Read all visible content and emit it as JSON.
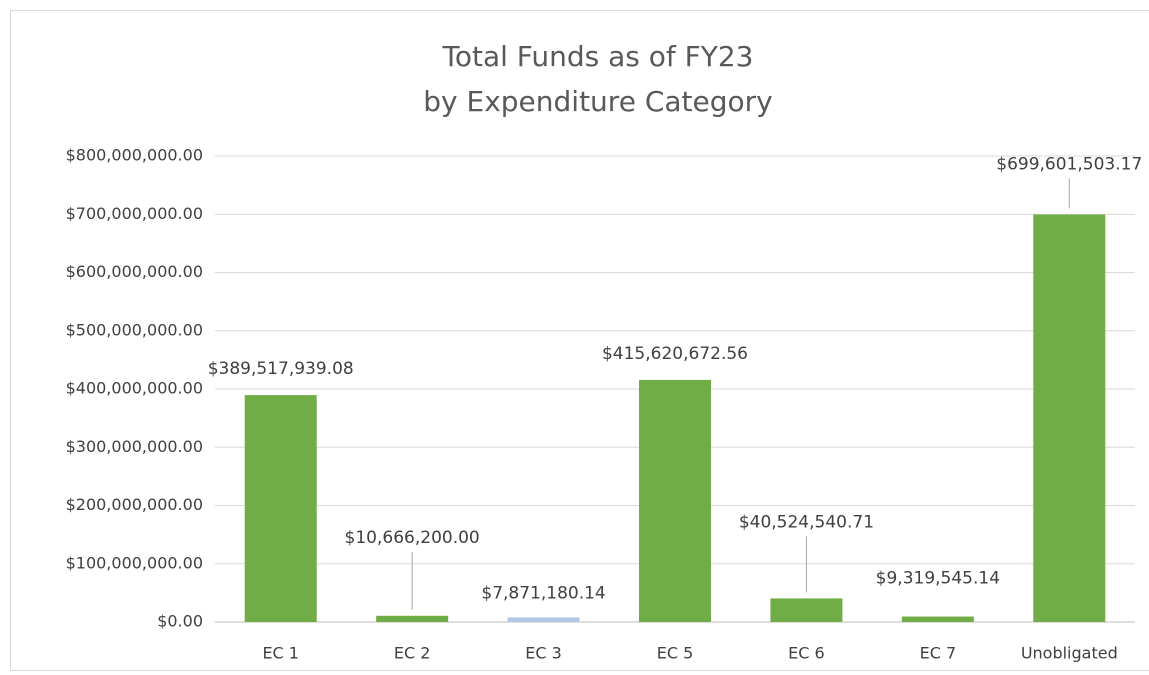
{
  "chart_data": {
    "type": "bar",
    "title": [
      "Total Funds as of FY23",
      "by Expenditure Category"
    ],
    "categories": [
      "EC 1",
      "EC 2",
      "EC 3",
      "EC 5",
      "EC 6",
      "EC 7",
      "Unobligated"
    ],
    "values": [
      389517939.08,
      10666200.0,
      7871180.14,
      415620672.56,
      40524540.71,
      9319545.14,
      699601503.17
    ],
    "value_labels": [
      "$389,517,939.08",
      "$10,666,200.00",
      "$7,871,180.14",
      "$415,620,672.56",
      "$40,524,540.71",
      "$9,319,545.14",
      "$699,601,503.17"
    ],
    "colors": [
      "#70ad47",
      "#70ad47",
      "#b4c7e7",
      "#70ad47",
      "#70ad47",
      "#70ad47",
      "#70ad47"
    ],
    "ylim": [
      0,
      800000000
    ],
    "yticks": [
      {
        "value": 0,
        "label": "$0.00"
      },
      {
        "value": 100000000,
        "label": "$100,000,000.00"
      },
      {
        "value": 200000000,
        "label": "$200,000,000.00"
      },
      {
        "value": 300000000,
        "label": "$300,000,000.00"
      },
      {
        "value": 400000000,
        "label": "$400,000,000.00"
      },
      {
        "value": 500000000,
        "label": "$500,000,000.00"
      },
      {
        "value": 600000000,
        "label": "$600,000,000.00"
      },
      {
        "value": 700000000,
        "label": "$700,000,000.00"
      },
      {
        "value": 800000000,
        "label": "$800,000,000.00"
      }
    ],
    "grid": true
  }
}
